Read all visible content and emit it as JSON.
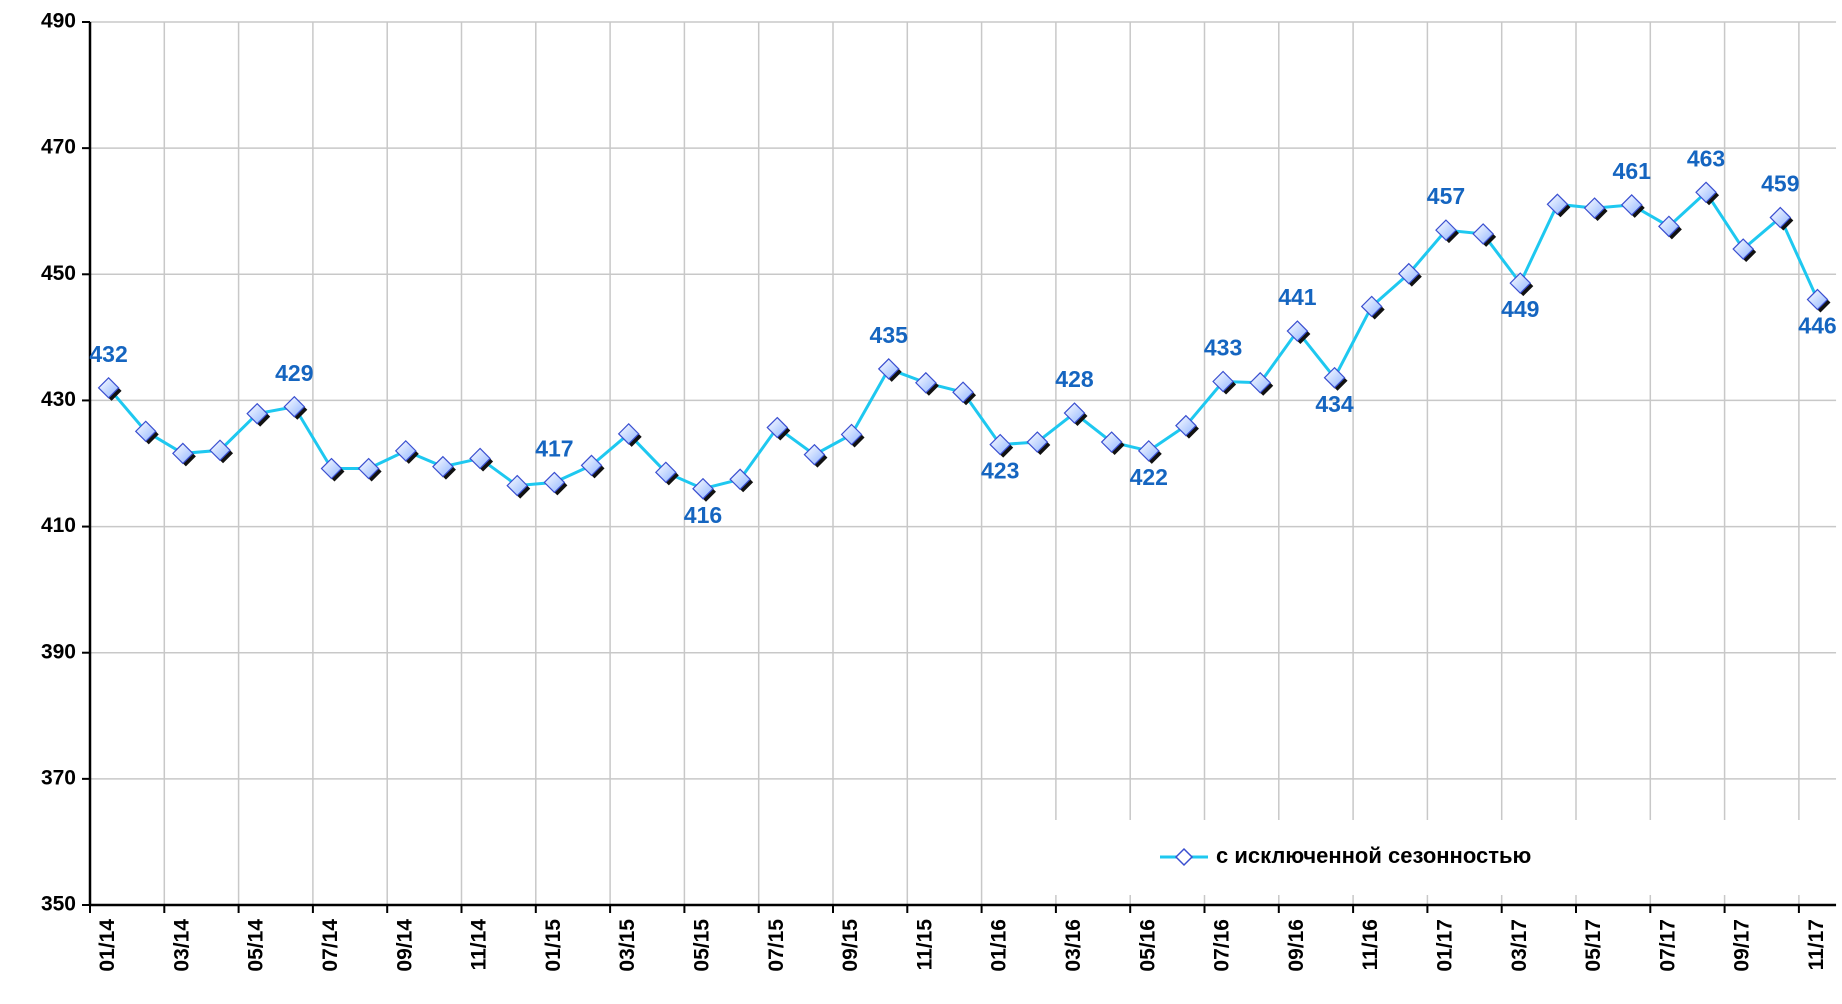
{
  "chart_data": {
    "type": "line",
    "categories": [
      "01/14",
      null,
      "03/14",
      null,
      "05/14",
      null,
      "07/14",
      null,
      "09/14",
      null,
      "11/14",
      null,
      "01/15",
      null,
      "03/15",
      null,
      "05/15",
      null,
      "07/15",
      null,
      "09/15",
      null,
      "11/15",
      null,
      "01/16",
      null,
      "03/16",
      null,
      "05/16",
      null,
      "07/16",
      null,
      "09/16",
      null,
      "11/16",
      null,
      "01/17",
      null,
      "03/17",
      null,
      "05/17",
      null,
      "07/17",
      null,
      "09/17",
      null,
      "11/17"
    ],
    "series": [
      {
        "name": "с исключенной сезонностью",
        "color": "#1ec8f0",
        "values": [
          432,
          425.1,
          421.6,
          422.1,
          427.9,
          429,
          419.2,
          419.2,
          422,
          419.5,
          420.8,
          416.5,
          417,
          419.7,
          424.7,
          418.6,
          416,
          417.5,
          425.7,
          421.4,
          424.6,
          435,
          432.8,
          431.3,
          423,
          423.4,
          428,
          423.4,
          422,
          426,
          433,
          432.8,
          441,
          433.6,
          444.9,
          450.1,
          457,
          456.4,
          448.6,
          461.1,
          460.5,
          461,
          457.6,
          463,
          454,
          459,
          446
        ],
        "value_labels": [
          "432",
          null,
          null,
          null,
          null,
          "429",
          null,
          null,
          null,
          null,
          null,
          null,
          "417",
          null,
          null,
          null,
          "416",
          null,
          null,
          null,
          null,
          "435",
          null,
          null,
          "423",
          null,
          "428",
          null,
          "422",
          null,
          "433",
          null,
          "441",
          "434",
          null,
          null,
          "457",
          null,
          "449",
          null,
          null,
          "461",
          null,
          "463",
          null,
          "459",
          "446"
        ]
      }
    ],
    "ylim": [
      350,
      490
    ],
    "yticks": [
      350,
      370,
      390,
      410,
      430,
      450,
      470,
      490
    ],
    "grid": true,
    "legend": "lower right"
  }
}
